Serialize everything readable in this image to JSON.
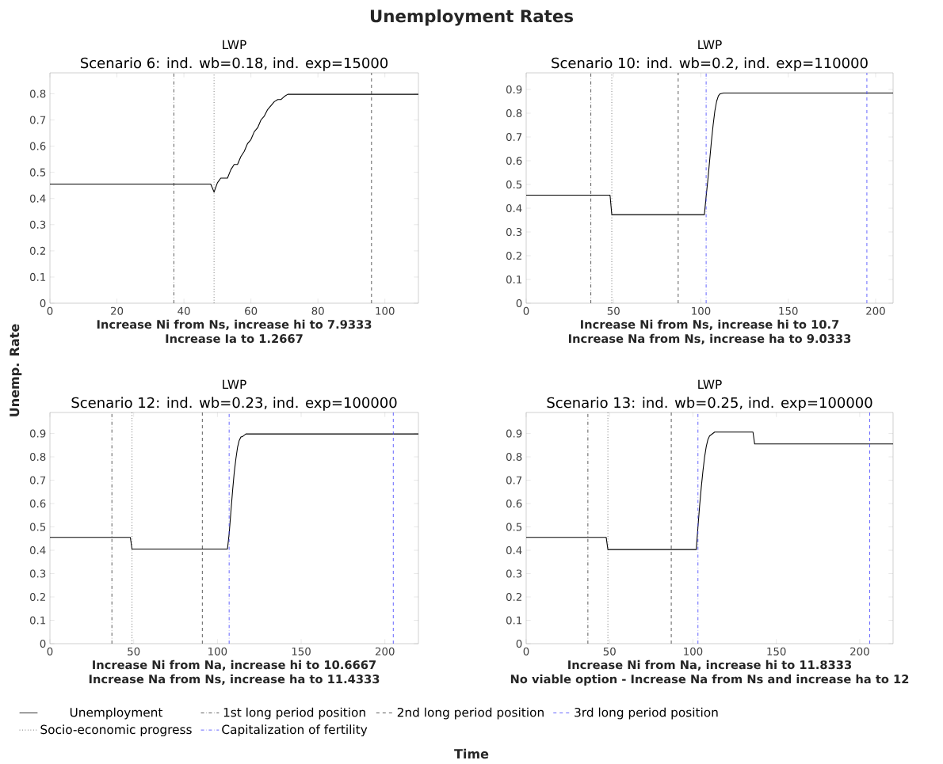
{
  "chart_data": [
    {
      "type": "line",
      "title": "LWP",
      "subtitle": "Scenario 6: ind. wb=0.18, ind. exp=15000",
      "xlabel": "Increase Ni from Ns, increase hi to 7.9333",
      "annotations": [
        "Increase Ia to 1.2667",
        "Unemployment Rates",
        "Unemp. Rate",
        "Time"
      ],
      "xlim": [
        0,
        110
      ],
      "ylim": [
        0,
        0.88
      ],
      "xticks": [
        0,
        20,
        40,
        60,
        80,
        100
      ],
      "yticks": [
        0,
        0.1,
        0.2,
        0.3,
        0.4,
        0.5,
        0.6,
        0.7,
        0.8
      ],
      "marker": "none",
      "series": [
        {
          "color": "#000000",
          "line_style": "solid",
          "x": [
            0,
            48,
            49,
            50,
            51,
            53,
            54,
            55,
            56,
            57,
            58,
            59,
            60,
            61,
            62,
            63,
            64,
            65,
            66,
            67,
            68,
            69,
            70,
            71,
            110
          ],
          "values": [
            0.455,
            0.455,
            0.425,
            0.46,
            0.478,
            0.478,
            0.51,
            0.53,
            0.53,
            0.56,
            0.58,
            0.61,
            0.625,
            0.655,
            0.67,
            0.7,
            0.715,
            0.74,
            0.755,
            0.77,
            0.778,
            0.778,
            0.79,
            0.798,
            0.798
          ]
        }
      ],
      "ref_lines": [
        {
          "axis": "x",
          "value": 37,
          "color": "#333333",
          "line_style": "dashdot"
        },
        {
          "axis": "x",
          "value": 96,
          "color": "#333333",
          "line_style": "dashed"
        },
        {
          "axis": "x",
          "value": 49,
          "color": "#333333",
          "line_style": "dotted"
        }
      ]
    },
    {
      "type": "line",
      "title": "LWP",
      "subtitle": "Scenario 10: ind. wb=0.2, ind. exp=110000",
      "xlabel": "Increase Ni from Ns, increase hi to 10.7",
      "annotations": [
        "Increase Na from Ns, increase ha to 9.0333"
      ],
      "xlim": [
        0,
        210
      ],
      "ylim": [
        0,
        0.97
      ],
      "xticks": [
        0,
        50,
        100,
        150,
        200
      ],
      "yticks": [
        0,
        0.1,
        0.2,
        0.3,
        0.4,
        0.5,
        0.6,
        0.7,
        0.8,
        0.9
      ],
      "marker": "none",
      "series": [
        {
          "color": "#000000",
          "line_style": "solid",
          "x": [
            0,
            48,
            49,
            102,
            103,
            104,
            105,
            106,
            107,
            108,
            109,
            110,
            111,
            113,
            210
          ],
          "values": [
            0.455,
            0.455,
            0.373,
            0.373,
            0.45,
            0.52,
            0.6,
            0.68,
            0.75,
            0.81,
            0.85,
            0.873,
            0.882,
            0.885,
            0.885
          ]
        }
      ],
      "ref_lines": [
        {
          "axis": "x",
          "value": 37,
          "color": "#333333",
          "line_style": "dashdot"
        },
        {
          "axis": "x",
          "value": 87,
          "color": "#333333",
          "line_style": "dashed"
        },
        {
          "axis": "x",
          "value": 195,
          "color": "#4040ff",
          "line_style": "dashed"
        },
        {
          "axis": "x",
          "value": 49,
          "color": "#333333",
          "line_style": "dotted"
        },
        {
          "axis": "x",
          "value": 103,
          "color": "#4040ff",
          "line_style": "dashdot"
        }
      ]
    },
    {
      "type": "line",
      "title": "LWP",
      "subtitle": "Scenario 12: ind. wb=0.23, ind. exp=100000",
      "xlabel": "Increase Ni from Na, increase hi to 10.6667",
      "annotations": [
        "Increase Na from Ns, increase ha to 11.4333"
      ],
      "xlim": [
        0,
        220
      ],
      "ylim": [
        0,
        0.99
      ],
      "xticks": [
        0,
        50,
        100,
        150,
        200
      ],
      "yticks": [
        0,
        0.1,
        0.2,
        0.3,
        0.4,
        0.5,
        0.6,
        0.7,
        0.8,
        0.9
      ],
      "marker": "none",
      "series": [
        {
          "color": "#000000",
          "line_style": "solid",
          "x": [
            0,
            48,
            49,
            106,
            107,
            108,
            109,
            110,
            111,
            112,
            113,
            114,
            115,
            117,
            220
          ],
          "values": [
            0.455,
            0.455,
            0.405,
            0.405,
            0.47,
            0.56,
            0.65,
            0.73,
            0.79,
            0.84,
            0.87,
            0.885,
            0.887,
            0.898,
            0.898
          ]
        }
      ],
      "ref_lines": [
        {
          "axis": "x",
          "value": 37,
          "color": "#333333",
          "line_style": "dashdot"
        },
        {
          "axis": "x",
          "value": 91,
          "color": "#333333",
          "line_style": "dashed"
        },
        {
          "axis": "x",
          "value": 205,
          "color": "#4040ff",
          "line_style": "dashed"
        },
        {
          "axis": "x",
          "value": 49,
          "color": "#333333",
          "line_style": "dotted"
        },
        {
          "axis": "x",
          "value": 107,
          "color": "#4040ff",
          "line_style": "dashdot"
        }
      ]
    },
    {
      "type": "line",
      "title": "LWP",
      "subtitle": "Scenario 13: ind. wb=0.25, ind. exp=100000",
      "xlabel": "Increase Ni from Na, increase hi to 11.8333",
      "annotations": [
        "No viable option - Increase Na from Ns and increase ha to 12"
      ],
      "xlim": [
        0,
        220
      ],
      "ylim": [
        0,
        0.99
      ],
      "xticks": [
        0,
        50,
        100,
        150,
        200
      ],
      "yticks": [
        0,
        0.1,
        0.2,
        0.3,
        0.4,
        0.5,
        0.6,
        0.7,
        0.8,
        0.9
      ],
      "marker": "none",
      "legend": "bottom",
      "series": [
        {
          "name": "Unemployment",
          "color": "#000000",
          "line_style": "solid",
          "x": [
            0,
            48,
            49,
            102,
            103,
            104,
            105,
            106,
            107,
            108,
            109,
            110,
            111,
            113,
            136,
            137,
            220
          ],
          "values": [
            0.455,
            0.455,
            0.403,
            0.403,
            0.5,
            0.59,
            0.67,
            0.74,
            0.8,
            0.845,
            0.875,
            0.89,
            0.895,
            0.906,
            0.906,
            0.855,
            0.855
          ]
        }
      ],
      "ref_lines": [
        {
          "axis": "x",
          "value": 37,
          "color": "#333333",
          "line_style": "dashdot",
          "label": "1st long period position"
        },
        {
          "axis": "x",
          "value": 87,
          "color": "#333333",
          "line_style": "dashed",
          "label": "2nd long period position"
        },
        {
          "axis": "x",
          "value": 206,
          "color": "#4040ff",
          "line_style": "dashed",
          "label": "3rd long period position"
        },
        {
          "axis": "x",
          "value": 49,
          "color": "#333333",
          "line_style": "dotted",
          "label": "Socio-economic progress"
        },
        {
          "axis": "x",
          "value": 103,
          "color": "#4040ff",
          "line_style": "dashdot",
          "label": "Capitalization of fertility"
        }
      ]
    }
  ]
}
